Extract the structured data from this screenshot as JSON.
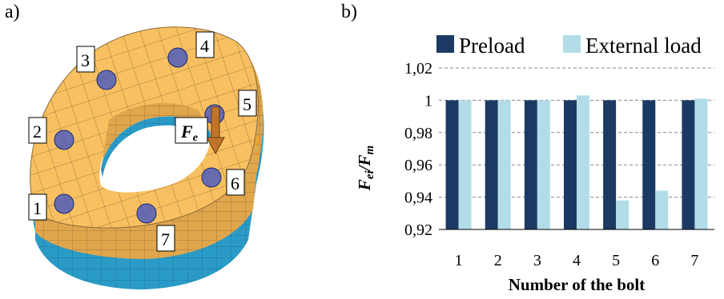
{
  "panel_a": {
    "label": "a)",
    "bolt_numbers": [
      "1",
      "2",
      "3",
      "4",
      "5",
      "6",
      "7"
    ],
    "force_label": "F",
    "force_subscript": "e",
    "colors": {
      "top_face": "#f8c060",
      "side_face": "#2a9bc7",
      "mesh": "#8a6a3a",
      "bolt": "#3a50c8",
      "arrow": "#c0742a"
    }
  },
  "panel_b": {
    "label": "b)",
    "ylabel_main1": "F",
    "ylabel_sub1": "ei",
    "ylabel_slash": "/",
    "ylabel_main2": "F",
    "ylabel_sub2": "m",
    "colors": {
      "preload": "#1b3a63",
      "external": "#b2dde8"
    }
  },
  "chart_data": {
    "type": "bar",
    "categories": [
      "1",
      "2",
      "3",
      "4",
      "5",
      "6",
      "7"
    ],
    "series": [
      {
        "name": "Preload",
        "values": [
          1,
          1,
          1,
          1,
          1,
          1,
          1
        ]
      },
      {
        "name": "External load",
        "values": [
          1.0,
          1.0,
          1.0,
          1.003,
          0.938,
          0.944,
          1.001
        ]
      }
    ],
    "xlabel": "Number of the bolt",
    "ylim": [
      0.92,
      1.02
    ],
    "yticks": [
      "0,92",
      "0,94",
      "0,96",
      "0,98",
      "1",
      "1,02"
    ],
    "ytick_values": [
      0.92,
      0.94,
      0.96,
      0.98,
      1.0,
      1.02
    ],
    "grid": true,
    "legend_position": "top"
  }
}
